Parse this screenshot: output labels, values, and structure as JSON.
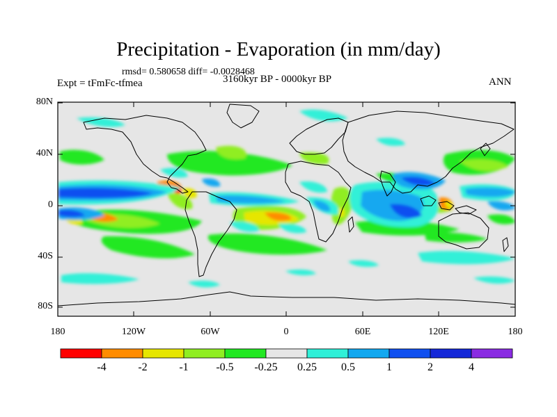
{
  "title": "Precipitation - Evaporation (in mm/day)",
  "stats": "rmsd= 0.580658 diff= -0.0028468",
  "experiment": "Expt = tFmFc-tfmea",
  "period": "3160kyr BP - 0000kyr BP",
  "season": "ANN",
  "lat_ticks": [
    "80N",
    "40N",
    "0",
    "40S",
    "80S"
  ],
  "lon_ticks": [
    "180",
    "120W",
    "60W",
    "0",
    "60E",
    "120E",
    "180"
  ],
  "colorbar": {
    "labels": [
      "-4",
      "-2",
      "-1",
      "-0.5",
      "-0.25",
      "0.25",
      "0.5",
      "1",
      "2",
      "4"
    ],
    "colors": [
      "#ff0000",
      "#ff8c00",
      "#e6e600",
      "#90ee22",
      "#22e822",
      "#e6e6e6",
      "#30f0d8",
      "#12a8f0",
      "#1050f0",
      "#1428d8",
      "#8a2be2"
    ]
  },
  "colors": {
    "ocean_background": "#e6e6e6",
    "coastline": "#000000"
  }
}
